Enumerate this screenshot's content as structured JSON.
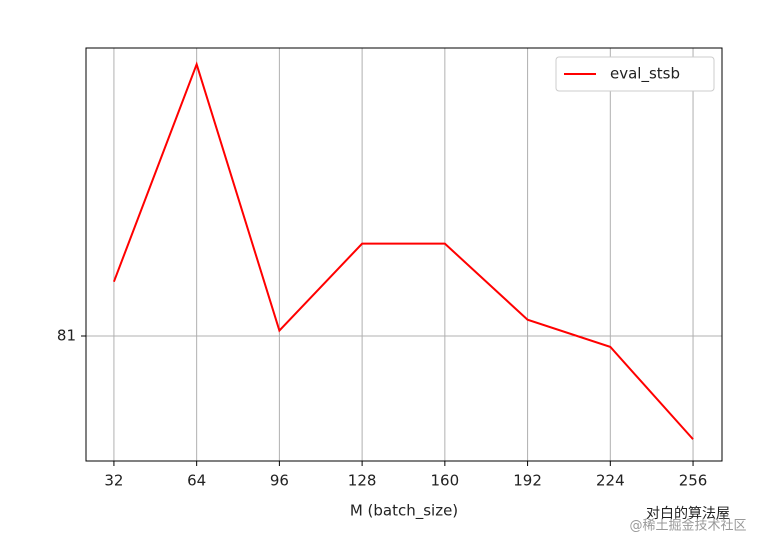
{
  "chart_data": {
    "type": "line",
    "x": [
      32,
      64,
      96,
      128,
      160,
      192,
      224,
      256
    ],
    "series": [
      {
        "name": "eval_stsb",
        "color": "#ff0000",
        "values": [
          81.1,
          81.5,
          81.01,
          81.17,
          81.17,
          81.03,
          80.98,
          80.81
        ]
      }
    ],
    "xlabel": "M (batch_size)",
    "xlim": [
      21.2,
      267.2
    ],
    "xticks": [
      32,
      64,
      96,
      128,
      160,
      192,
      224,
      256
    ],
    "ylim": [
      80.77,
      81.53
    ],
    "yticks": [
      81
    ],
    "grid": true,
    "legend": "upper right"
  },
  "watermark": {
    "line1": "对白的算法屋",
    "line2": "@稀土掘金技术社区"
  }
}
